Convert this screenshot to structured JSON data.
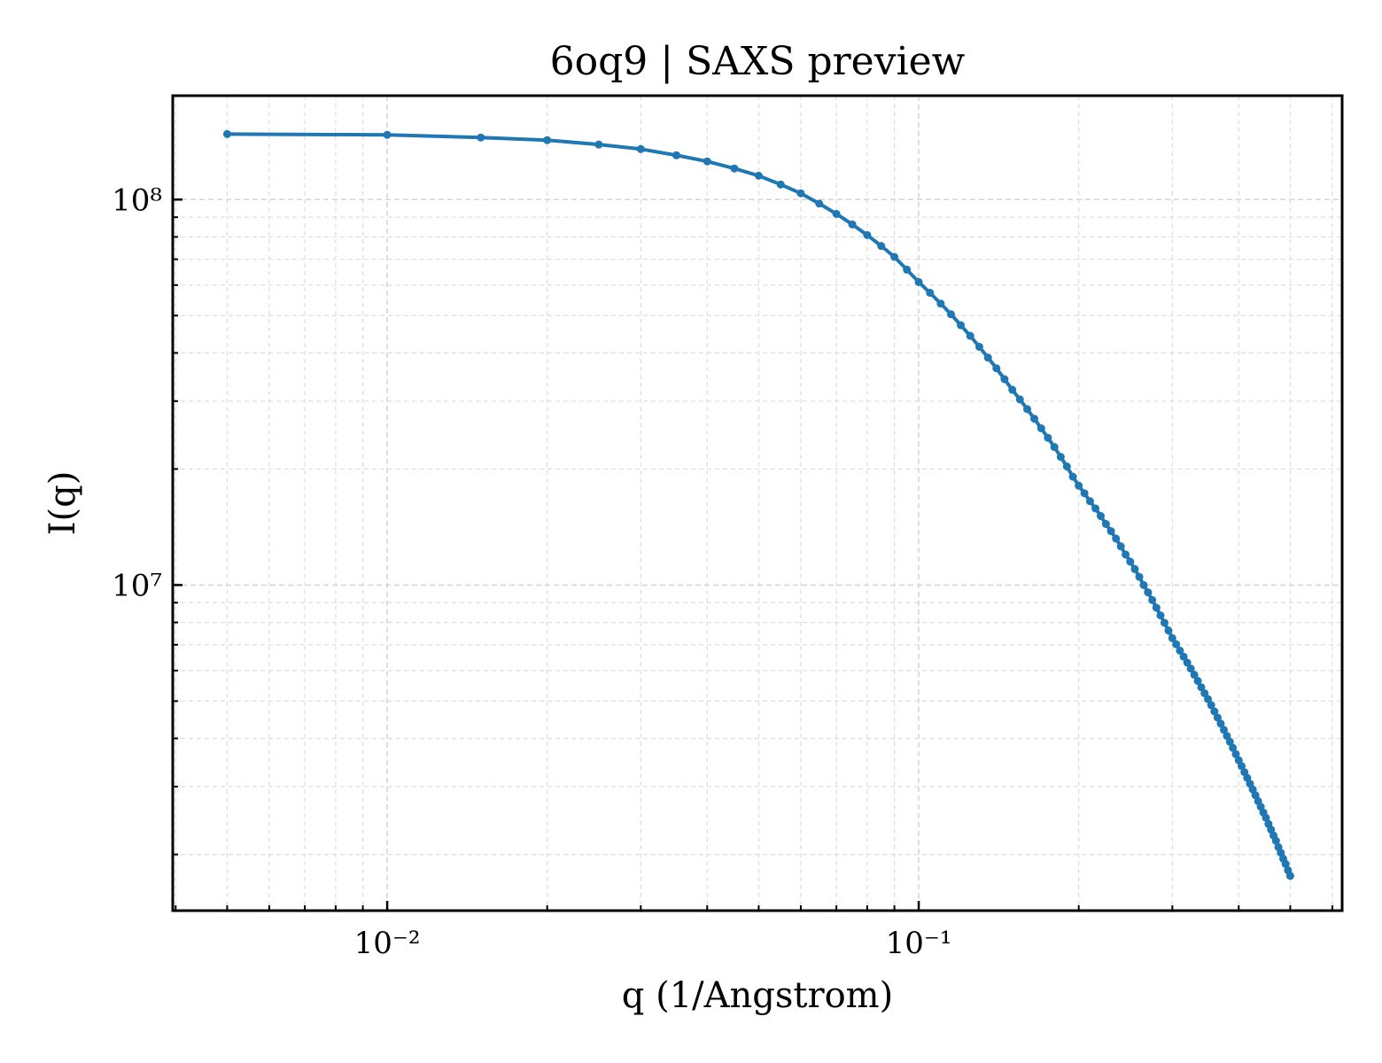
{
  "chart_data": {
    "type": "line",
    "title": "6oq9 | SAXS preview",
    "xlabel": "q (1/Angstrom)",
    "ylabel": "I(q)",
    "xscale": "log",
    "yscale": "log",
    "grid": true,
    "color": "#1f77b4",
    "x": [
      0.005,
      0.01,
      0.015,
      0.02,
      0.025,
      0.03,
      0.035,
      0.04,
      0.045,
      0.05,
      0.055,
      0.06,
      0.065,
      0.07,
      0.075,
      0.08,
      0.085,
      0.09,
      0.095,
      0.1,
      0.105,
      0.11,
      0.115,
      0.12,
      0.125,
      0.13,
      0.135,
      0.14,
      0.145,
      0.15,
      0.155,
      0.16,
      0.165,
      0.17,
      0.175,
      0.18,
      0.185,
      0.19,
      0.195,
      0.2,
      0.205,
      0.21,
      0.215,
      0.22,
      0.225,
      0.23,
      0.235,
      0.24,
      0.245,
      0.25,
      0.255,
      0.26,
      0.265,
      0.27,
      0.275,
      0.28,
      0.285,
      0.29,
      0.295,
      0.3,
      0.305,
      0.31,
      0.315,
      0.32,
      0.325,
      0.33,
      0.335,
      0.34,
      0.345,
      0.35,
      0.355,
      0.36,
      0.365,
      0.37,
      0.375,
      0.38,
      0.385,
      0.39,
      0.395,
      0.4,
      0.405,
      0.41,
      0.415,
      0.42,
      0.425,
      0.43,
      0.435,
      0.44,
      0.445,
      0.45,
      0.455,
      0.46,
      0.465,
      0.47,
      0.475,
      0.48,
      0.485,
      0.49,
      0.495,
      0.5
    ],
    "values": [
      147900000.0,
      147200000.0,
      144900000.0,
      142600000.0,
      138900000.0,
      135200000.0,
      130300000.0,
      125600000.0,
      120400000.0,
      115300000.0,
      109400000.0,
      103800000.0,
      97600000.0,
      91800000.0,
      86200000.0,
      80900000.0,
      75800000.0,
      71000000.0,
      65800000.0,
      61100000.0,
      57300000.0,
      53700000.0,
      50400000.0,
      47200000.0,
      44300000.0,
      41500000.0,
      38900000.0,
      36500000.0,
      34200000.0,
      32100000.0,
      30300000.0,
      28600000.0,
      27000000.0,
      25500000.0,
      24100000.0,
      22800000.0,
      21500000.0,
      20300000.0,
      19100000.0,
      18100000.0,
      17300000.0,
      16500000.0,
      15800000.0,
      15100000.0,
      14400000.0,
      13800000.0,
      13200000.0,
      12600000.0,
      12000000.0,
      11500000.0,
      11000000.0,
      10500000.0,
      10000000.0,
      9570000.0,
      9140000.0,
      8730000.0,
      8340000.0,
      7980000.0,
      7620000.0,
      7280000.0,
      7020000.0,
      6760000.0,
      6520000.0,
      6290000.0,
      6070000.0,
      5850000.0,
      5640000.0,
      5430000.0,
      5240000.0,
      5060000.0,
      4880000.0,
      4700000.0,
      4530000.0,
      4370000.0,
      4210000.0,
      4060000.0,
      3920000.0,
      3780000.0,
      3640000.0,
      3510000.0,
      3390000.0,
      3270000.0,
      3160000.0,
      3050000.0,
      2950000.0,
      2850000.0,
      2750000.0,
      2660000.0,
      2570000.0,
      2490000.0,
      2400000.0,
      2320000.0,
      2240000.0,
      2170000.0,
      2090000.0,
      2020000.0,
      1950000.0,
      1890000.0,
      1820000.0,
      1760000.0
    ],
    "xlim": [
      0.00395,
      0.626
    ],
    "ylim": [
      1430000.0,
      186000000.0
    ],
    "xticks": [
      {
        "value": 0.01,
        "label": "10⁻²"
      },
      {
        "value": 0.1,
        "label": "10⁻¹"
      }
    ],
    "yticks": [
      {
        "value": 10000000,
        "label": "10⁷"
      },
      {
        "value": 100000000,
        "label": "10⁸"
      }
    ],
    "xminorticks": [
      0.004,
      0.005,
      0.006,
      0.007,
      0.008,
      0.009,
      0.02,
      0.03,
      0.04,
      0.05,
      0.06,
      0.07,
      0.08,
      0.09,
      0.2,
      0.3,
      0.4,
      0.5,
      0.6
    ],
    "yminorticks": [
      2000000.0,
      3000000.0,
      4000000.0,
      5000000.0,
      6000000.0,
      7000000.0,
      8000000.0,
      9000000.0,
      20000000.0,
      30000000.0,
      40000000.0,
      50000000.0,
      60000000.0,
      70000000.0,
      80000000.0,
      90000000.0
    ]
  }
}
